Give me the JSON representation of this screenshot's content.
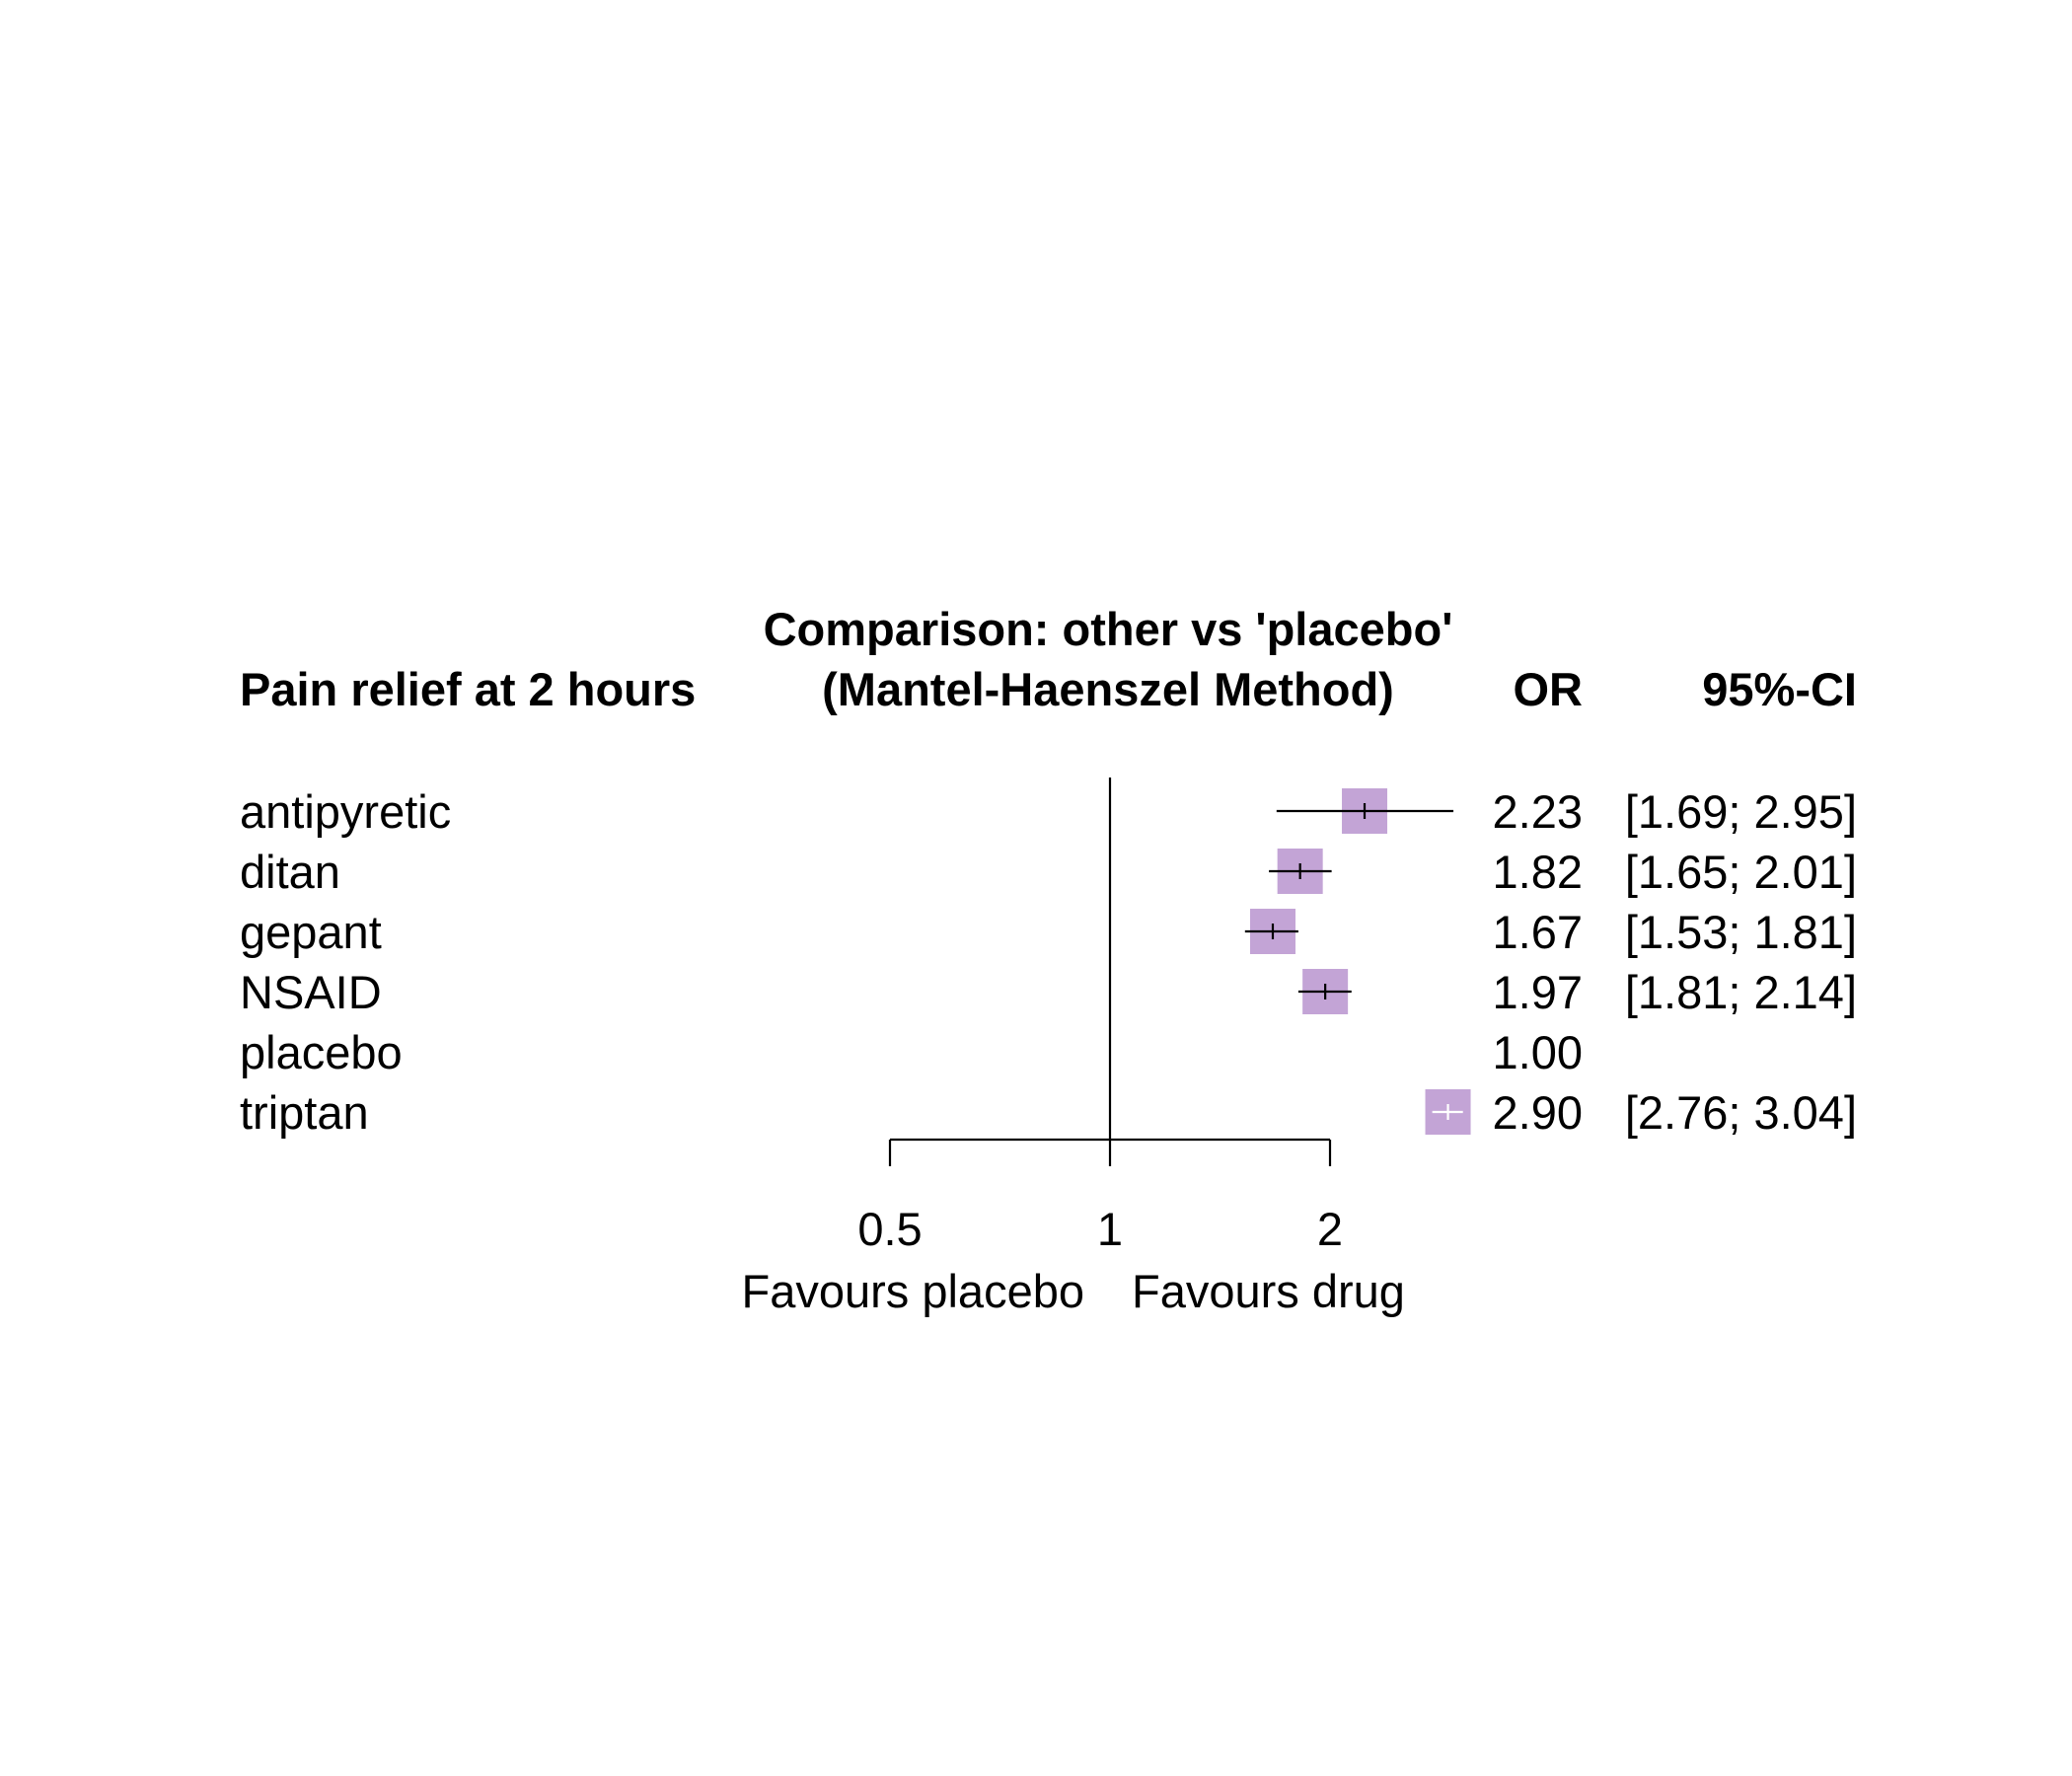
{
  "chart_data": {
    "type": "forest",
    "column_header": "Pain relief at 2 hours",
    "title_line1": "Comparison: other vs 'placebo'",
    "title_line2": "(Mantel-Haenszel Method)",
    "or_header": "OR",
    "ci_header": "95%-CI",
    "rows": [
      {
        "label": "antipyretic",
        "or": 2.23,
        "lo": 1.69,
        "hi": 2.95,
        "or_text": "2.23",
        "ci_text": "[1.69; 2.95]"
      },
      {
        "label": "ditan",
        "or": 1.82,
        "lo": 1.65,
        "hi": 2.01,
        "or_text": "1.82",
        "ci_text": "[1.65; 2.01]"
      },
      {
        "label": "gepant",
        "or": 1.67,
        "lo": 1.53,
        "hi": 1.81,
        "or_text": "1.67",
        "ci_text": "[1.53; 1.81]"
      },
      {
        "label": "NSAID",
        "or": 1.97,
        "lo": 1.81,
        "hi": 2.14,
        "or_text": "1.97",
        "ci_text": "[1.81; 2.14]"
      },
      {
        "label": "placebo",
        "or": 1.0,
        "lo": null,
        "hi": null,
        "or_text": "1.00",
        "ci_text": ""
      },
      {
        "label": "triptan",
        "or": 2.9,
        "lo": 2.76,
        "hi": 3.04,
        "or_text": "2.90",
        "ci_text": "[2.76; 3.04]"
      }
    ],
    "x_axis": {
      "scale": "log",
      "ticks": [
        0.5,
        1,
        2
      ],
      "tick_labels": [
        "0.5",
        "1",
        "2"
      ],
      "xlim": [
        0.5,
        2.55
      ],
      "reference_line": 1
    },
    "label_left": "Favours placebo",
    "label_right": "Favours drug",
    "box_color": "#C3A4D6",
    "line_color": "#000000",
    "inner_line_color_over_box_edge": "#ffffff"
  }
}
